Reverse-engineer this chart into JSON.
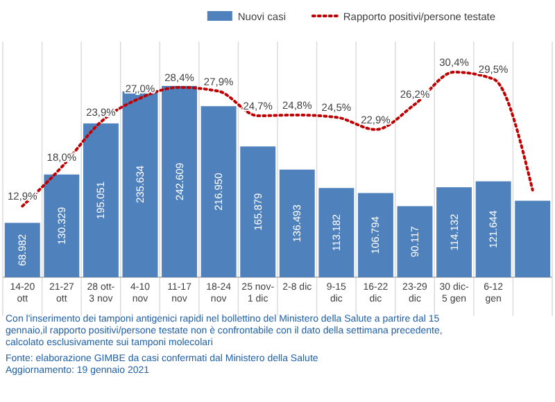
{
  "chart_data": {
    "type": "bar",
    "categories": [
      "14-20 ott",
      "21-27 ott",
      "28 ott-3 nov",
      "4-10 nov",
      "11-17 nov",
      "18-24 nov",
      "25 nov-1 dic",
      "2-8 dic",
      "9-15 dic",
      "16-22 dic",
      "23-29 dic",
      "30 dic-5 gen",
      "6-12 gen",
      null
    ],
    "series": [
      {
        "name": "Nuovi casi",
        "color": "#4f81bd",
        "values": [
          68982,
          130329,
          195051,
          235634,
          242609,
          216950,
          165879,
          136493,
          113182,
          106794,
          90117,
          114132,
          121644,
          97000
        ],
        "value_labels": [
          "68.982",
          "130.329",
          "195.051",
          "235.634",
          "242.609",
          "216.950",
          "165.879",
          "136.493",
          "113.182",
          "106.794",
          "90.117",
          "114.132",
          "121.644",
          null
        ]
      },
      {
        "name": "Rapporto positivi/persone testate",
        "type": "line",
        "axis": "y2",
        "color": "#c00000",
        "line_style": "dotted",
        "values": [
          12.9,
          18.0,
          23.9,
          27.0,
          28.4,
          27.9,
          24.7,
          24.8,
          24.5,
          22.9,
          26.2,
          30.4,
          29.5,
          15
        ],
        "value_labels": [
          "12,9%",
          "18,0%",
          "23,9%",
          "27,0%",
          "28,4%",
          "27,9%",
          "24,7%",
          "24,8%",
          "24,5%",
          "22,9%",
          "26,2%",
          "30,4%",
          "29,5%",
          null
        ]
      }
    ],
    "legend": "top right",
    "grid": "x",
    "annotations": [
      "Con l'inserimento dei tamponi antigenici rapidi nel bollettino del Ministero della Salute a partire dal 15 gennaio,il rapporto positivi/persone testate non è confrontabile con il dato della settimana precedente, calcolato esclusivamente sui tamponi molecolari",
      "Fonte: elaborazione GIMBE da casi confermati dal Ministero della Salute",
      "Aggiornamento: 19 gennaio 2021"
    ]
  }
}
